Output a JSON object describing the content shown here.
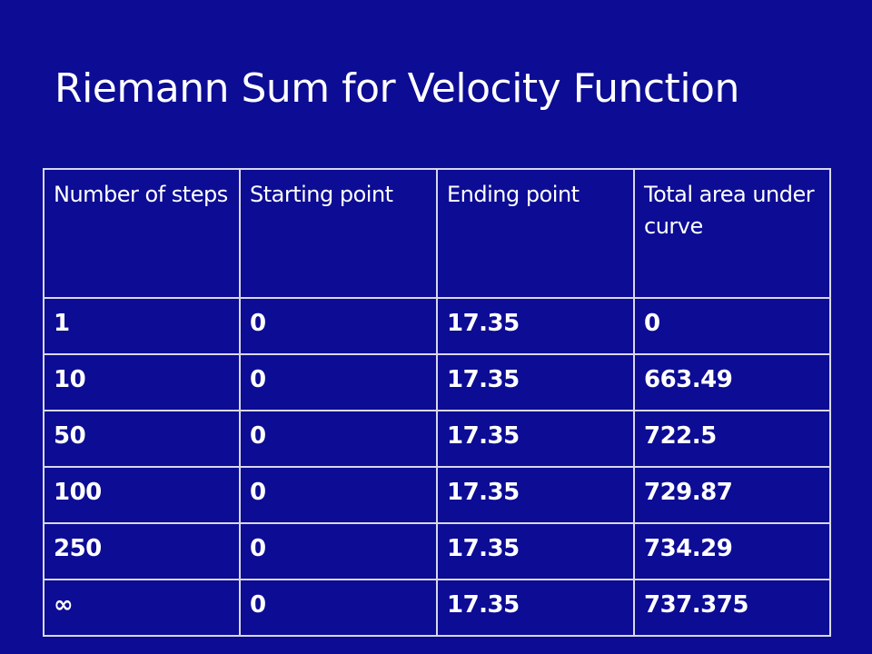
{
  "title": "Riemann Sum for Velocity Function",
  "table": {
    "header": [
      "Number of steps",
      "Starting point",
      "Ending point",
      "Total area under curve"
    ],
    "rows": [
      [
        "1",
        "0",
        "17.35",
        "0"
      ],
      [
        "10",
        "0",
        "17.35",
        "663.49"
      ],
      [
        "50",
        "0",
        "17.35",
        "722.5"
      ],
      [
        "100",
        "0",
        "17.35",
        "729.87"
      ],
      [
        "250",
        "0",
        "17.35",
        "734.29"
      ],
      [
        "∞",
        "0",
        "17.35",
        "737.375"
      ]
    ]
  }
}
